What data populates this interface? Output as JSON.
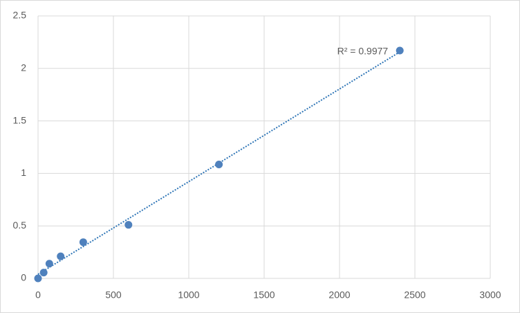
{
  "chart_data": {
    "type": "scatter",
    "x": [
      0,
      37.5,
      75,
      150,
      300,
      600,
      1200,
      2400
    ],
    "values": [
      0,
      0.055,
      0.14,
      0.21,
      0.345,
      0.51,
      1.085,
      2.17
    ],
    "color": "#4f81bd",
    "xlim": [
      0,
      3000
    ],
    "xticks": [
      0,
      500,
      1000,
      1500,
      2000,
      2500,
      3000
    ],
    "ylim": [
      0,
      2.5
    ],
    "yticks": [
      0,
      0.5,
      1,
      1.5,
      2,
      2.5
    ],
    "grid": true,
    "trendline": {
      "type": "linear",
      "color": "#2e75b6",
      "label": "R² = 0.9977"
    }
  }
}
